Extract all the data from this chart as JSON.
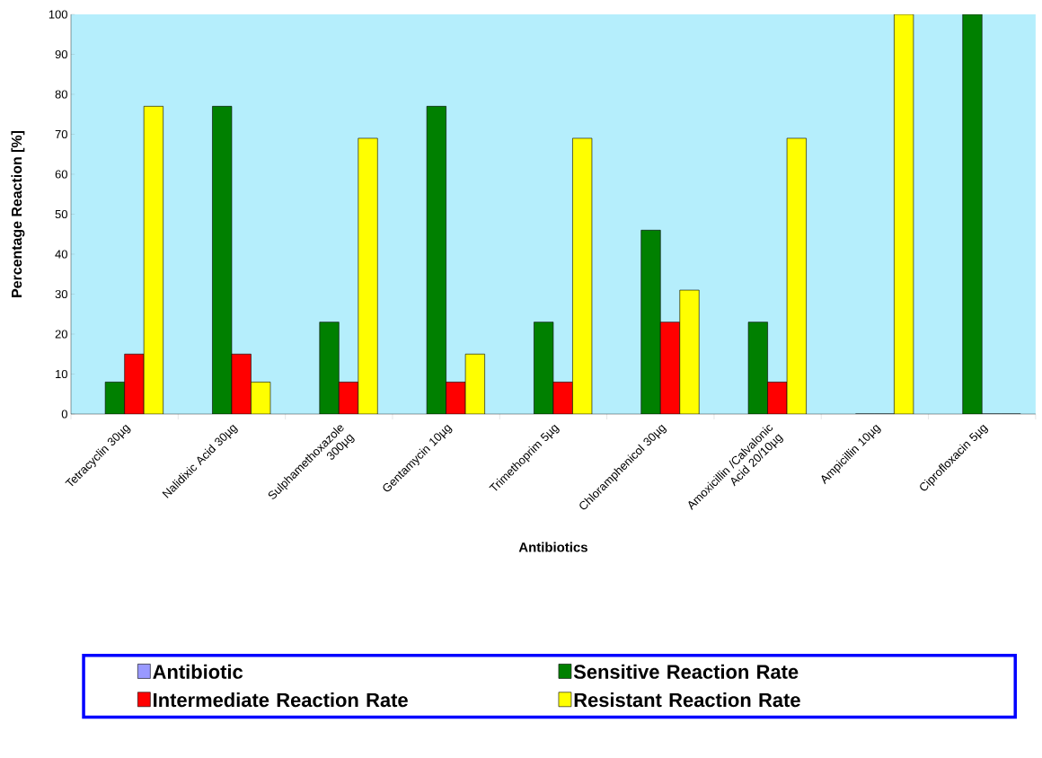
{
  "chart_data": {
    "type": "bar",
    "xlabel": "Antibiotics",
    "ylabel": "Percentage Reaction [%]",
    "categories": [
      "Tetracyclin 30µg",
      "Nalidixic Acid 30µg",
      "Sulphamethoxazole 300µg",
      "Gentamycin 10µg",
      "Trimethoprim 5µg",
      "Chloramphenicol 30µg",
      "Amoxicillin /Calvalonic Acid 20/10µg",
      "Ampicillin 10µg",
      "Ciprofloxacin 5µg"
    ],
    "series": [
      {
        "name": "Antibiotic",
        "color": "#9999ff",
        "values": [
          null,
          null,
          null,
          null,
          null,
          null,
          null,
          null,
          null
        ]
      },
      {
        "name": "Sensitive Reaction Rate",
        "color": "#008000",
        "values": [
          8,
          77,
          23,
          77,
          23,
          46,
          23,
          0,
          100
        ]
      },
      {
        "name": "Intermediate Reaction Rate",
        "color": "#ff0000",
        "values": [
          15,
          15,
          8,
          8,
          8,
          23,
          8,
          0,
          0
        ]
      },
      {
        "name": "Resistant Reaction Rate",
        "color": "#ffff00",
        "values": [
          77,
          8,
          69,
          15,
          69,
          31,
          69,
          100,
          0
        ]
      }
    ],
    "ylim": [
      0,
      100
    ],
    "yticks": [
      0,
      10,
      20,
      30,
      40,
      50,
      60,
      70,
      80,
      90,
      100
    ],
    "legend": "bottom"
  }
}
